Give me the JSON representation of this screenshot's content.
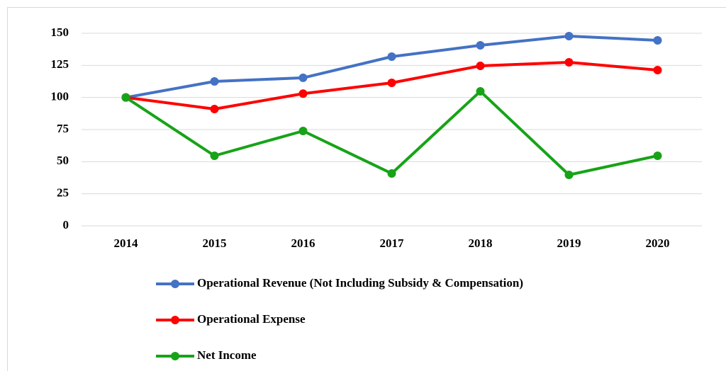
{
  "chart_data": {
    "type": "line",
    "categories": [
      "2014",
      "2015",
      "2016",
      "2017",
      "2018",
      "2019",
      "2020"
    ],
    "series": [
      {
        "name": "Operational Revenue (Not Including Subsidy & Compensation)",
        "color": "#4472c4",
        "values": [
          100,
          112.5,
          115.3,
          131.8,
          140.6,
          147.8,
          144.5
        ]
      },
      {
        "name": "Operational Expense",
        "color": "#ff0000",
        "values": [
          100,
          91,
          103,
          111.4,
          124.6,
          127.4,
          121.3
        ]
      },
      {
        "name": "Net Income",
        "color": "#17a317",
        "values": [
          100,
          54.6,
          73.9,
          40.8,
          104.8,
          39.7,
          54.6
        ]
      }
    ],
    "ylim": [
      0,
      150
    ],
    "yticks": [
      0,
      25,
      50,
      75,
      100,
      125,
      150
    ],
    "grid": true,
    "legend": "bottom"
  }
}
